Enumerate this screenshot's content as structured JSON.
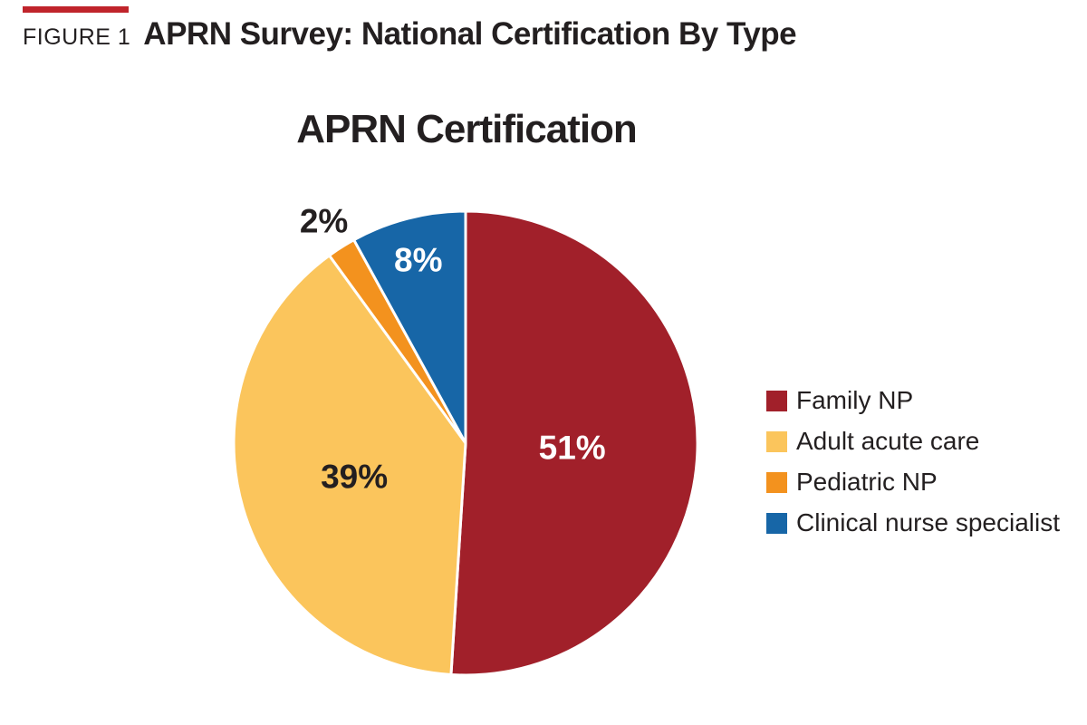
{
  "page": {
    "background": "#ffffff",
    "text_color": "#231f20"
  },
  "header": {
    "accent_bar_color": "#c0242b",
    "figure_label": "FIGURE 1",
    "title": "APRN Survey: National Certification By Type"
  },
  "chart_data": {
    "type": "pie",
    "title": "APRN Certification",
    "legend_position": "right",
    "start_angle_deg": 0,
    "direction": "clockwise",
    "categories": [
      "Family NP",
      "Adult acute care",
      "Pediatric NP",
      "Clinical nurse specialist"
    ],
    "values": [
      51,
      39,
      2,
      8
    ],
    "slices": [
      {
        "label": "Family NP",
        "value": 51,
        "pct_label": "51%",
        "color": "#a1202a",
        "pct_label_color": "#ffffff",
        "pct_label_radius": 0.46
      },
      {
        "label": "Adult acute care",
        "value": 39,
        "pct_label": "39%",
        "color": "#fbc55c",
        "pct_label_color": "#231f20",
        "pct_label_radius": 0.5
      },
      {
        "label": "Pediatric NP",
        "value": 2,
        "pct_label": "2%",
        "color": "#f3921e",
        "pct_label_color": "#231f20",
        "pct_label_radius": 1.14
      },
      {
        "label": "Clinical nurse specialist",
        "value": 8,
        "pct_label": "8%",
        "color": "#1766a7",
        "pct_label_color": "#ffffff",
        "pct_label_radius": 0.82
      }
    ],
    "slice_divider_color": "#ffffff"
  }
}
